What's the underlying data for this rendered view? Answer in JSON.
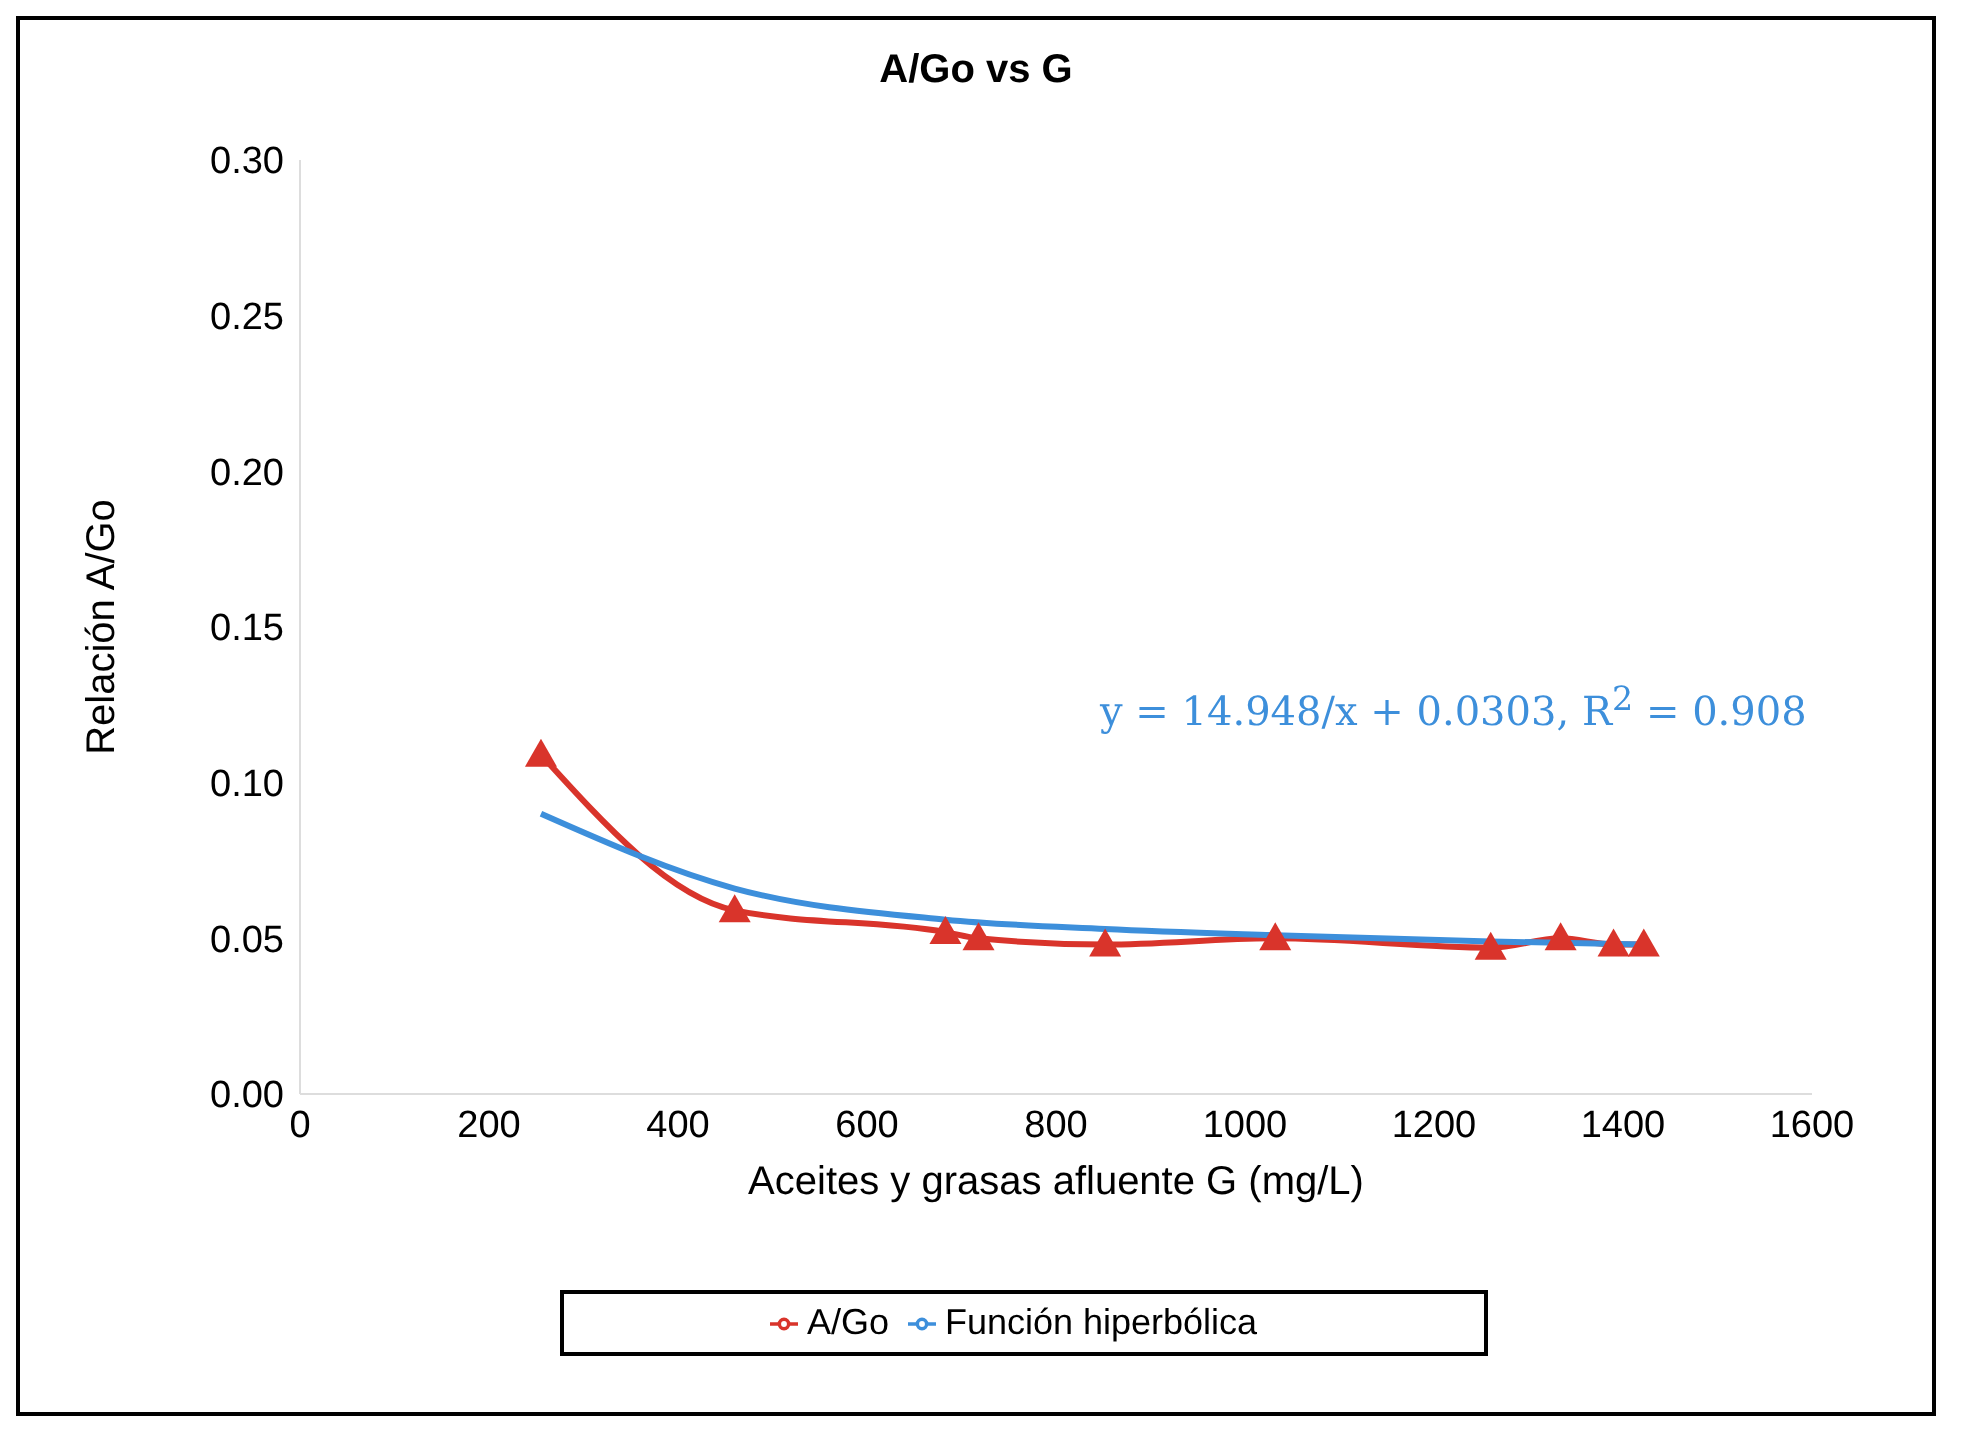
{
  "chart_data": {
    "type": "line",
    "title": "A/Go vs G",
    "xlabel": "Aceites y grasas afluente G (mg/L)",
    "ylabel": "Relación A/Go",
    "series": [
      {
        "name": "A/Go",
        "color": "#d9342b",
        "marker": "triangle",
        "x": [
          255,
          460,
          683,
          718,
          852,
          1032,
          1260,
          1334,
          1390,
          1422
        ],
        "values": [
          0.109,
          0.059,
          0.052,
          0.05,
          0.048,
          0.05,
          0.047,
          0.05,
          0.048,
          0.048
        ]
      },
      {
        "name": "Función hiperbólica",
        "color": "#3d8fdb",
        "marker": "none",
        "x": [
          255,
          460,
          683,
          852,
          1032,
          1260,
          1422
        ],
        "values": [
          0.09,
          0.066,
          0.056,
          0.053,
          0.051,
          0.049,
          0.048
        ]
      }
    ],
    "xlim": [
      0,
      1600
    ],
    "xticks": [
      0,
      200,
      400,
      600,
      800,
      1000,
      1200,
      1400,
      1600
    ],
    "ylim": [
      0,
      0.3
    ],
    "yticks": [
      {
        "value": 0,
        "label": "0.00"
      },
      {
        "value": 0.05,
        "label": "0.05"
      },
      {
        "value": 0.1,
        "label": "0.10"
      },
      {
        "value": 0.15,
        "label": "0.15"
      },
      {
        "value": 0.2,
        "label": "0.20"
      },
      {
        "value": 0.25,
        "label": "0.25"
      },
      {
        "value": 0.3,
        "label": "0.30"
      }
    ],
    "annotations": [
      "y = 14.948/x + 0.0303, R$^{2}$ = 0.908"
    ],
    "grid": false,
    "legend": "bottom"
  }
}
